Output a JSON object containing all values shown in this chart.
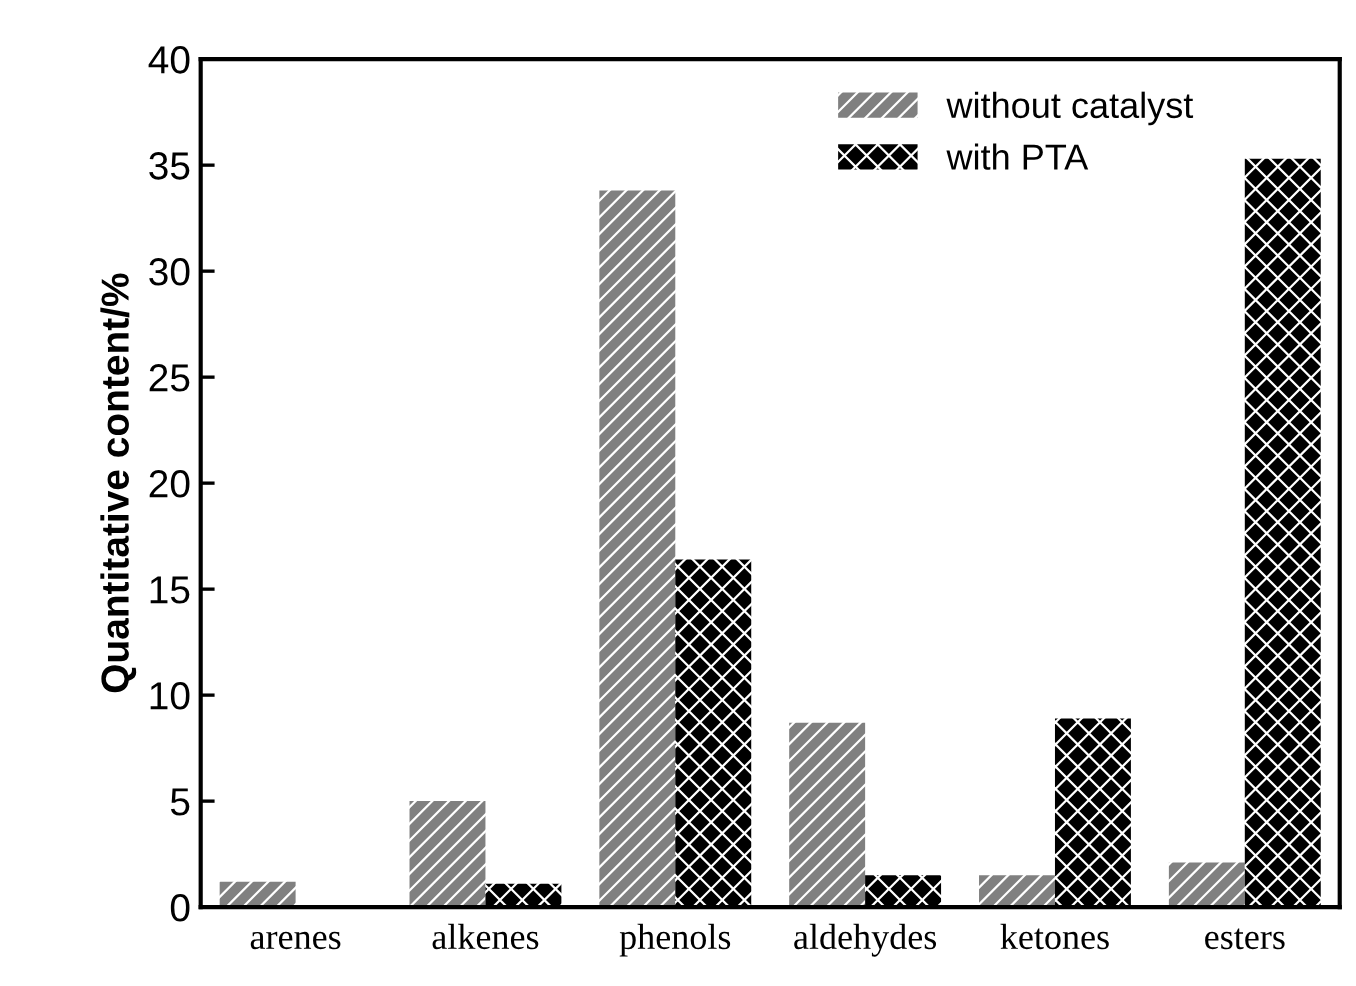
{
  "chart_data": {
    "type": "bar",
    "ylabel": "Quantitative content/%",
    "categories": [
      "arenes",
      "alkenes",
      "phenols",
      "aldehydes",
      "ketones",
      "esters"
    ],
    "series": [
      {
        "name": "without catalyst",
        "color": "#808080",
        "values": [
          1.2,
          5.0,
          33.8,
          8.7,
          1.5,
          2.1
        ]
      },
      {
        "name": "with PTA",
        "color": "#000000",
        "values": [
          0,
          1.1,
          16.4,
          1.5,
          8.9,
          35.3
        ]
      }
    ],
    "ylim": [
      0,
      40
    ],
    "yticks": [
      0,
      5,
      10,
      15,
      20,
      25,
      30,
      35,
      40
    ],
    "legend": "top right",
    "grid": false
  }
}
